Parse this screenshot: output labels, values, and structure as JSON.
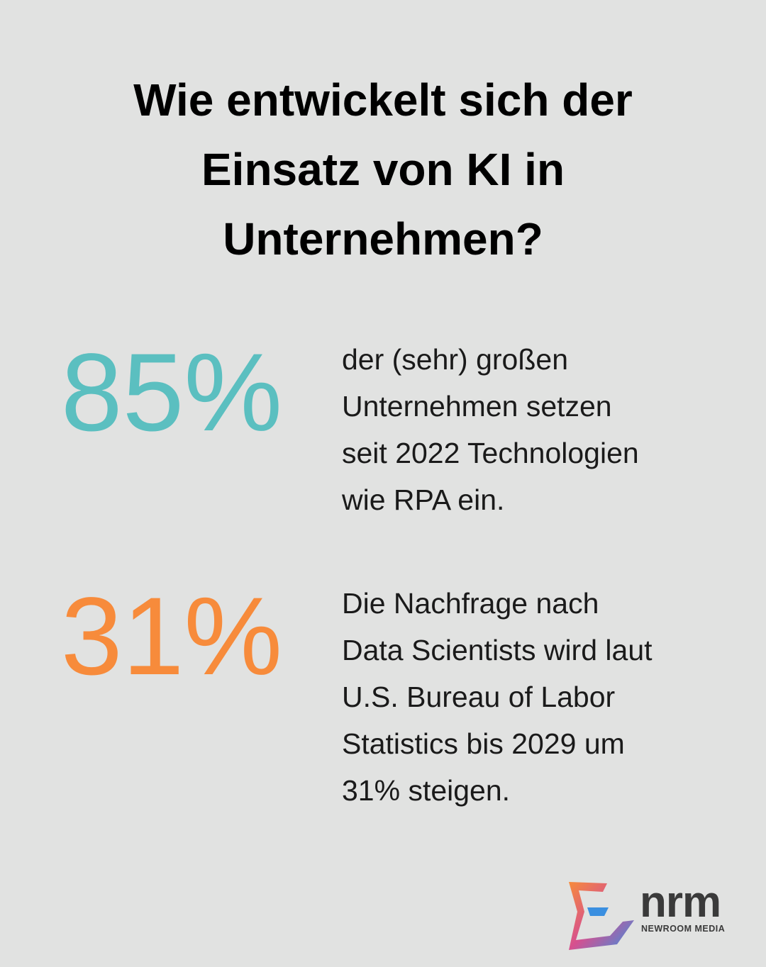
{
  "header": {
    "title_lines": [
      "Wie entwickelt sich der",
      "Einsatz von KI in",
      "Unternehmen?"
    ]
  },
  "stats": [
    {
      "value": "85%",
      "color": "#5bbfc0",
      "description_lines": [
        "der (sehr) großen",
        "Unternehmen setzen",
        "seit 2022 Technologien",
        "wie RPA ein."
      ]
    },
    {
      "value": "31%",
      "color": "#f78b3b",
      "description_lines": [
        "Die Nachfrage nach",
        "Data Scientists wird laut",
        "U.S. Bureau of Labor",
        "Statistics bis 2029 um",
        "31% steigen."
      ]
    }
  ],
  "logo": {
    "name": "nrm",
    "subtitle": "NEWROOM MEDIA"
  }
}
